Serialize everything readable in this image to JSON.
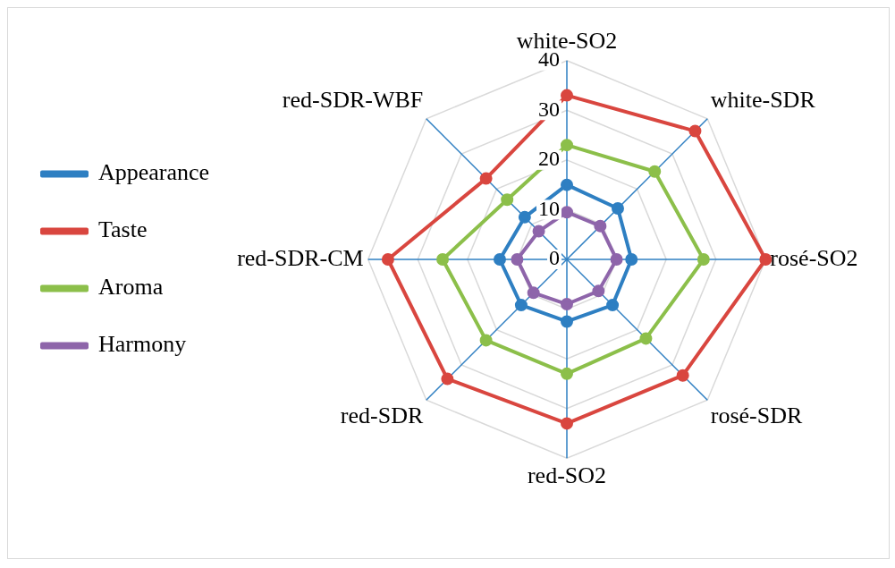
{
  "chart_data": {
    "type": "radar",
    "categories": [
      "white-SO2",
      "white-SDR",
      "rosé-SO2",
      "rosé-SDR",
      "red-SO2",
      "red-SDR",
      "red-SDR-CM",
      "red-SDR-WBF"
    ],
    "series": [
      {
        "name": "Appearance",
        "color": "#2e7fc2",
        "values": [
          15,
          14.5,
          13,
          13,
          12.5,
          13,
          13.5,
          12
        ]
      },
      {
        "name": "Taste",
        "color": "#d9463f",
        "values": [
          33,
          36.5,
          40,
          33,
          33,
          34,
          36,
          23
        ]
      },
      {
        "name": "Aroma",
        "color": "#8cbf4a",
        "values": [
          23,
          25,
          27.5,
          22.5,
          23,
          23,
          25,
          17
        ]
      },
      {
        "name": "Harmony",
        "color": "#8e65aa",
        "values": [
          9.5,
          9.5,
          10,
          9,
          9,
          9.5,
          10,
          8
        ]
      }
    ],
    "ylim": [
      0,
      40
    ],
    "yticks": [
      0,
      10,
      20,
      30,
      40
    ],
    "grid": true,
    "legend": "left",
    "marker": "circle",
    "line_style": "solid"
  }
}
